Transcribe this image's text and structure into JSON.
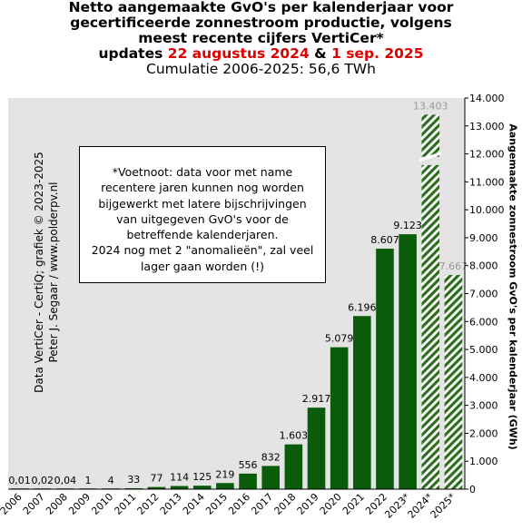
{
  "title": {
    "line1": "Netto aangemaakte GvO's per kalenderjaar voor",
    "line2": "gecertificeerde zonnestroom productie, volgens",
    "line3": "meest recente cijfers VertiCer*",
    "line4_prefix": "updates ",
    "line4_date1": "22 augustus 2024",
    "line4_mid": " & ",
    "line4_date2": "1 sep. 2025",
    "subtitle": "Cumulatie 2006-2025:  56,6 TWh"
  },
  "footnote": {
    "lines": [
      "*Voetnoot: data voor met name",
      "recentere jaren kunnen nog worden",
      "bijgewerkt met latere bijschrijvingen",
      "van uitgegeven GvO's voor de",
      "betreffende kalenderjaren.",
      "2024 nog met 2 \"anomalieën\",  zal veel",
      "lager gaan worden (!)"
    ]
  },
  "credit": {
    "line1": "Data VertiCer - CertiQ; grafiek © 2023-2025",
    "line2": "Peter J. Segaar  /  www.polderpv.nl"
  },
  "colors": {
    "bar": "#0a5c0a",
    "hatch": "#2d6e1f",
    "hatch_label": "#999999",
    "red": "#e00000",
    "plot_background": "#e4e4e4"
  },
  "chart_data": {
    "type": "bar",
    "ylabel": "Aangemaakte zonnestroom GvO's per kalenderjaar (GWh)",
    "ylim": [
      0,
      14000
    ],
    "y_ticks": [
      0,
      1000,
      2000,
      3000,
      4000,
      5000,
      6000,
      7000,
      8000,
      9000,
      10000,
      11000,
      12000,
      13000,
      14000
    ],
    "y_tick_labels": [
      "0",
      "1.000",
      "2.000",
      "3.000",
      "4.000",
      "5.000",
      "6.000",
      "7.000",
      "8.000",
      "9.000",
      "10.000",
      "11.000",
      "12.000",
      "13.000",
      "14.000"
    ],
    "y_axis_position": "right",
    "grid": false,
    "categories": [
      "2006",
      "2007",
      "2008",
      "2009",
      "2010",
      "2011",
      "2012",
      "2013",
      "2014",
      "2015",
      "2016",
      "2017",
      "2018",
      "2019",
      "2020",
      "2021",
      "2022",
      "2023*",
      "2024*",
      "2025*"
    ],
    "values": [
      0.01,
      0.02,
      0.04,
      1,
      4,
      33,
      77,
      114,
      125,
      219,
      556,
      832,
      1603,
      2917,
      5079,
      6196,
      8607,
      9123,
      13403,
      7667
    ],
    "value_labels": [
      "0,01",
      "0,02",
      "0,04",
      "1",
      "4",
      "33",
      "77",
      "114",
      "125",
      "219",
      "556",
      "832",
      "1.603",
      "2.917",
      "5.079",
      "6.196",
      "8.607",
      "9.123",
      "13.403",
      "7.667"
    ],
    "hatched": [
      false,
      false,
      false,
      false,
      false,
      false,
      false,
      false,
      false,
      false,
      false,
      false,
      false,
      false,
      false,
      false,
      false,
      false,
      true,
      true
    ]
  }
}
